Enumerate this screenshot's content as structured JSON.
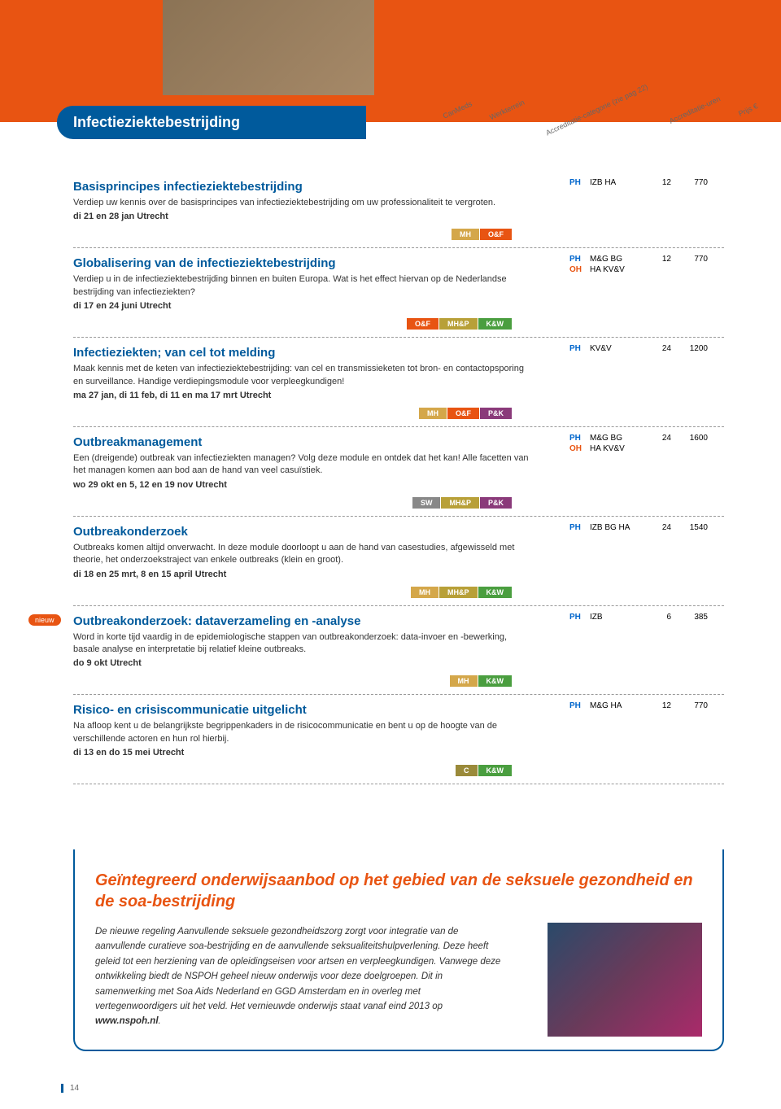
{
  "header_labels": [
    "CanMeds",
    "Werkterrein",
    "Accreditatie-categorie (zie pag 22)",
    "Accreditatie-uren",
    "Prijs €"
  ],
  "section_title": "Infectieziektebestrijding",
  "nieuw_label": "nieuw",
  "courses": [
    {
      "title": "Basisprincipes infectieziektebestrijding",
      "desc": "Verdiep uw kennis over de basisprincipes van infectieziektebestrijding om uw professionaliteit te vergroten.",
      "date": "di 21 en 28 jan Utrecht",
      "tags": [
        {
          "t": "MH",
          "c": "mh"
        },
        {
          "t": "O&F",
          "c": "of"
        }
      ],
      "right": [
        {
          "p": "PH",
          "code": "IZB HA",
          "n": "12",
          "pr": "770"
        }
      ]
    },
    {
      "title": "Globalisering van de infectieziektebestrijding",
      "desc": "Verdiep u in de infectieziektebestrijding binnen en buiten Europa. Wat is het effect hiervan op de Nederlandse bestrijding van infectieziekten?",
      "date": "di 17 en 24 juni Utrecht",
      "tags": [
        {
          "t": "O&F",
          "c": "of"
        },
        {
          "t": "MH&P",
          "c": "mhp"
        },
        {
          "t": "K&W",
          "c": "kw"
        }
      ],
      "right": [
        {
          "p": "PH",
          "code": "M&G BG",
          "n": "12",
          "pr": "770"
        },
        {
          "p": "OH",
          "code": "HA KV&V",
          "n": "",
          "pr": ""
        }
      ]
    },
    {
      "title": "Infectieziekten; van cel tot melding",
      "desc": "Maak kennis met de keten van infectieziektebestrijding: van cel en transmissieketen tot bron- en contactopsporing en surveillance. Handige verdiepingsmodule voor verpleegkundigen!",
      "date": "ma 27 jan, di 11 feb, di 11 en ma 17 mrt Utrecht",
      "tags": [
        {
          "t": "MH",
          "c": "mh"
        },
        {
          "t": "O&F",
          "c": "of"
        },
        {
          "t": "P&K",
          "c": "pk"
        }
      ],
      "right": [
        {
          "p": "PH",
          "code": "KV&V",
          "n": "24",
          "pr": "1200"
        }
      ]
    },
    {
      "title": "Outbreakmanagement",
      "desc": "Een (dreigende) outbreak van infectieziekten managen? Volg deze module en ontdek dat het kan! Alle facetten van het managen komen aan bod aan de hand van veel casuïstiek.",
      "date": "wo 29 okt en 5, 12 en 19 nov Utrecht",
      "tags": [
        {
          "t": "SW",
          "c": "sw"
        },
        {
          "t": "MH&P",
          "c": "mhp"
        },
        {
          "t": "P&K",
          "c": "pk"
        }
      ],
      "right": [
        {
          "p": "PH",
          "code": "M&G BG",
          "n": "24",
          "pr": "1600"
        },
        {
          "p": "OH",
          "code": "HA KV&V",
          "n": "",
          "pr": ""
        }
      ]
    },
    {
      "title": "Outbreakonderzoek",
      "desc": "Outbreaks komen altijd onverwacht. In deze module doorloopt u aan de hand van casestudies, afgewisseld met theorie, het onderzoekstraject van enkele outbreaks (klein en groot).",
      "date": "di 18 en 25 mrt, 8 en 15 april Utrecht",
      "tags": [
        {
          "t": "MH",
          "c": "mh"
        },
        {
          "t": "MH&P",
          "c": "mhp"
        },
        {
          "t": "K&W",
          "c": "kw"
        }
      ],
      "right": [
        {
          "p": "PH",
          "code": "IZB BG HA",
          "n": "24",
          "pr": "1540"
        }
      ]
    },
    {
      "title": "Outbreakonderzoek: dataverzameling en -analyse",
      "desc": "Word in korte tijd vaardig in de epidemiologische stappen van outbreakonderzoek: data-invoer en -bewerking, basale analyse en interpretatie bij relatief kleine outbreaks.",
      "date": "do 9 okt Utrecht",
      "tags": [
        {
          "t": "MH",
          "c": "mh"
        },
        {
          "t": "K&W",
          "c": "kw"
        }
      ],
      "right": [
        {
          "p": "PH",
          "code": "IZB",
          "n": "6",
          "pr": "385"
        }
      ],
      "nieuw": true
    },
    {
      "title": "Risico- en crisiscommunicatie uitgelicht",
      "desc": "Na afloop kent u de belangrijkste begrippenkaders in de risicocommunicatie en bent u op de hoogte van de verschillende actoren en hun rol hierbij.",
      "date": "di 13 en do 15 mei Utrecht",
      "tags": [
        {
          "t": "C",
          "c": "c"
        },
        {
          "t": "K&W",
          "c": "kw"
        }
      ],
      "right": [
        {
          "p": "PH",
          "code": "M&G HA",
          "n": "12",
          "pr": "770"
        }
      ]
    }
  ],
  "callout": {
    "title": "Geïntegreerd onderwijsaanbod op het gebied van de seksuele gezondheid en de soa-bestrijding",
    "body": "De nieuwe regeling Aanvullende seksuele gezondheidszorg zorgt voor integratie van de aanvullende curatieve soa-bestrijding en de aanvullende seksualiteitshulpverlening. Deze heeft geleid tot een herziening van de opleidingseisen voor artsen en verpleegkundigen. Vanwege deze ontwikkeling biedt de NSPOH geheel nieuw onderwijs voor deze doelgroepen. Dit in samenwerking met Soa Aids Nederland en GGD Amsterdam en in overleg met vertegenwoordigers uit het veld. Het vernieuwde onderwijs staat vanaf eind 2013 op ",
    "link": "www.nspoh.nl"
  },
  "page_num": "14",
  "tag_colors": {
    "mh": "#d4a74a",
    "of": "#e85412",
    "mhp": "#b8a038",
    "kw": "#4a9e3f",
    "pk": "#8a3a7a",
    "sw": "#888888",
    "c": "#9a8a3a"
  },
  "header_col_colors": [
    "#6ba3d6",
    "#4a8bc8",
    "#3a7ab8"
  ]
}
